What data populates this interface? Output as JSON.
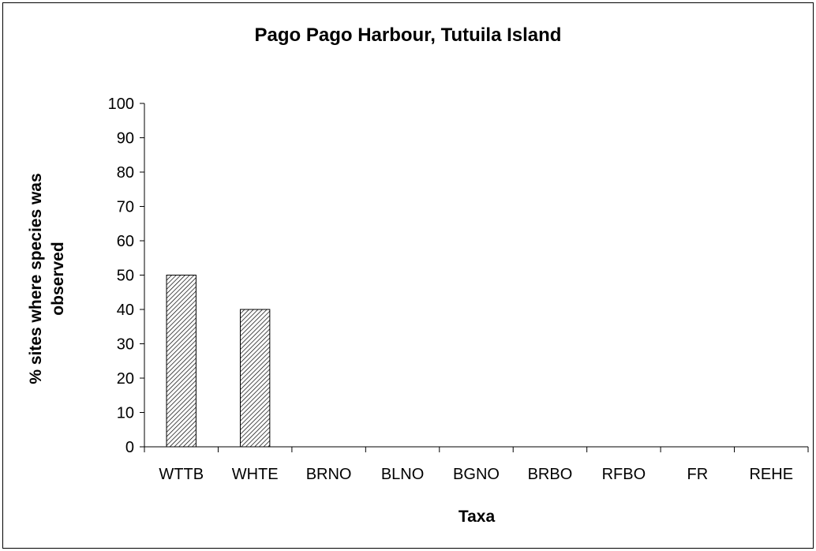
{
  "chart_data": {
    "type": "bar",
    "title": "Pago Pago Harbour, Tutuila Island",
    "xlabel": "Taxa",
    "ylabel_lines": [
      "% sites where species was",
      "observed"
    ],
    "categories": [
      "WTTB",
      "WHTE",
      "BRNO",
      "BLNO",
      "BGNO",
      "BRBO",
      "RFBO",
      "FR",
      "REHE"
    ],
    "values": [
      50,
      40,
      0,
      0,
      0,
      0,
      0,
      0,
      0
    ],
    "ylim": [
      0,
      100
    ],
    "yticks": [
      0,
      10,
      20,
      30,
      40,
      50,
      60,
      70,
      80,
      90,
      100
    ],
    "grid": false,
    "legend": "none",
    "bar_fill": "hatched",
    "colors": {
      "bar_stroke": "#000000",
      "hatch": "#000000",
      "background": "#ffffff"
    }
  }
}
